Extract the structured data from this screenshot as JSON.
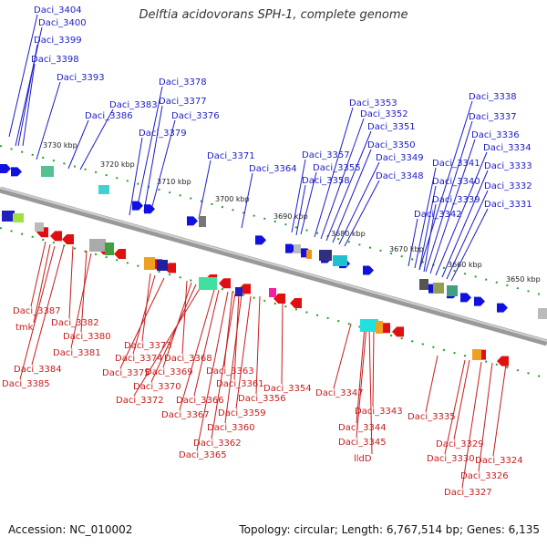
{
  "title": "Delftia acidovorans SPH-1, complete genome",
  "footer": {
    "accession": "Accession: NC_010002",
    "topology": "Topology: circular; Length: 6,767,514 bp; Genes: 6,135"
  },
  "colors": {
    "top_label": "#1c1cc8",
    "bottom_label": "#c81c1c",
    "forward_gene": "#1010e0",
    "reverse_gene": "#e01010",
    "backbone": "#888888",
    "tick": "#22a022"
  },
  "coordinates": [
    "3730 kbp",
    "3720 kbp",
    "3710 kbp",
    "3700 kbp",
    "3690 kbp",
    "3680 kbp",
    "3670 kbp",
    "3660 kbp",
    "3650 kbp"
  ],
  "top_labels": [
    "Daci_3404",
    "Daci_3400",
    "Daci_3399",
    "Daci_3398",
    "Daci_3393",
    "Daci_3386",
    "Daci_3383",
    "Daci_3378",
    "Daci_3377",
    "Daci_3376",
    "Daci_3379",
    "Daci_3371",
    "Daci_3364",
    "Daci_3357",
    "Daci_3355",
    "Daci_3358",
    "Daci_3353",
    "Daci_3352",
    "Daci_3351",
    "Daci_3350",
    "Daci_3349",
    "Daci_3348",
    "Daci_3338",
    "Daci_3337",
    "Daci_3336",
    "Daci_3334",
    "Daci_3341",
    "Daci_3333",
    "Daci_3340",
    "Daci_3332",
    "Daci_3339",
    "Daci_3331",
    "Daci_3342"
  ],
  "bottom_labels": [
    "Daci_3387",
    "tmk",
    "Daci_3382",
    "Daci_3380",
    "Daci_3381",
    "Daci_3384",
    "Daci_3385",
    "Daci_3373",
    "Daci_3374",
    "Daci_3375",
    "Daci_3368",
    "Daci_3369",
    "Daci_3370",
    "Daci_3372",
    "Daci_3363",
    "Daci_3361",
    "Daci_3366",
    "Daci_3356",
    "Daci_3354",
    "Daci_3367",
    "Daci_3359",
    "Daci_3360",
    "Daci_3362",
    "Daci_3365",
    "Daci_3347",
    "Daci_3343",
    "Daci_3344",
    "Daci_3345",
    "lldD",
    "Daci_3335",
    "Daci_3329",
    "Daci_3330",
    "Daci_3324",
    "Daci_3326",
    "Daci_3327"
  ]
}
